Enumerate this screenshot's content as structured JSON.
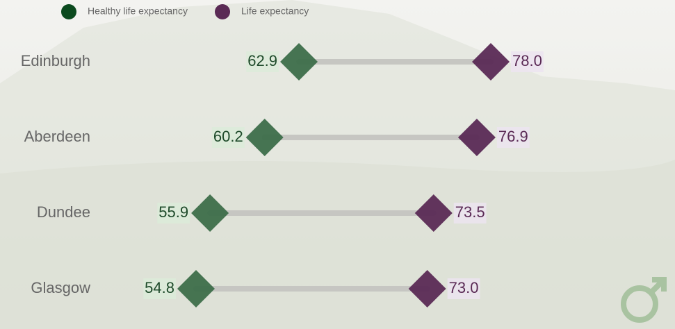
{
  "chart_data": {
    "type": "dumbbell",
    "categories": [
      "Edinburgh",
      "Aberdeen",
      "Dundee",
      "Glasgow"
    ],
    "series": [
      {
        "name": "Healthy life expectancy",
        "color": "#3d6e4a",
        "values": [
          62.9,
          60.2,
          55.9,
          54.8
        ],
        "value_labels": [
          "62.9",
          "60.2",
          "55.9",
          "54.8"
        ]
      },
      {
        "name": "Life expectancy",
        "color": "#5a2a55",
        "values": [
          78.0,
          76.9,
          73.5,
          73.0
        ],
        "value_labels": [
          "78.0",
          "76.9",
          "73.5",
          "73.0"
        ]
      }
    ]
  }
}
